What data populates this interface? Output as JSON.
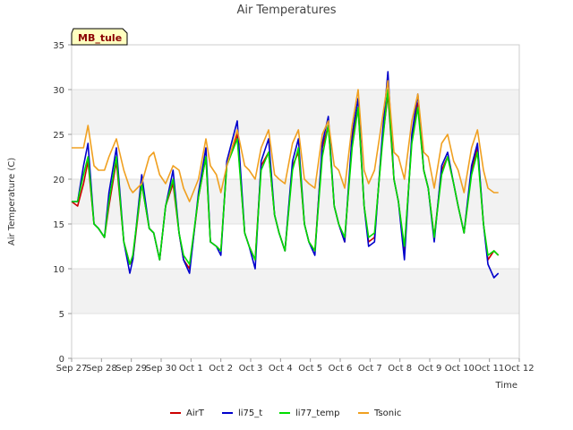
{
  "chart_data": {
    "type": "line",
    "title": "Air Temperatures",
    "xlabel": "Time",
    "ylabel": "Air Temperature (C)",
    "badge": "MB_tule",
    "ylim": [
      0,
      35
    ],
    "yticks": [
      0,
      5,
      10,
      15,
      20,
      25,
      30,
      35
    ],
    "xlim": [
      "Sep 27",
      "Oct 12"
    ],
    "xtick_labels": [
      "Sep 27",
      "Sep 28",
      "Sep 29",
      "Sep 30",
      "Oct 1",
      "Oct 2",
      "Oct 3",
      "Oct 4",
      "Oct 5",
      "Oct 6",
      "Oct 7",
      "Oct 8",
      "Oct 9",
      "Oct 10",
      "Oct 11",
      "Oct 12"
    ],
    "grid": "horizontal alternating bands",
    "legend_position": "bottom",
    "series": [
      {
        "name": "AirT",
        "color": "#cc0000",
        "x": [
          0.0,
          0.2,
          0.4,
          0.55,
          0.75,
          0.9,
          1.1,
          1.25,
          1.5,
          1.75,
          1.95,
          2.05,
          2.35,
          2.6,
          2.75,
          2.95,
          3.15,
          3.4,
          3.6,
          3.75,
          3.95,
          4.25,
          4.5,
          4.65,
          4.85,
          5.0,
          5.2,
          5.55,
          5.8,
          5.95,
          6.15,
          6.35,
          6.6,
          6.8,
          6.95,
          7.15,
          7.4,
          7.6,
          7.8,
          7.95,
          8.15,
          8.4,
          8.6,
          8.8,
          8.95,
          9.15,
          9.4,
          9.6,
          9.8,
          9.95,
          10.15,
          10.4,
          10.6,
          10.8,
          10.95,
          11.15,
          11.4,
          11.6,
          11.8,
          11.95,
          12.15,
          12.4,
          12.6,
          12.8,
          12.95,
          13.15,
          13.4,
          13.6,
          13.8,
          13.95,
          14.15,
          14.3
        ],
        "y": [
          17.5,
          17.0,
          19.5,
          22.0,
          15.0,
          14.5,
          13.5,
          17.0,
          22.0,
          13.0,
          10.5,
          11.0,
          19.5,
          14.5,
          14.0,
          11.0,
          17.0,
          19.5,
          14.0,
          11.0,
          10.0,
          18.0,
          22.5,
          13.0,
          12.5,
          12.0,
          21.5,
          25.0,
          14.0,
          12.5,
          11.0,
          21.5,
          23.0,
          16.0,
          14.0,
          12.0,
          21.5,
          23.0,
          15.0,
          13.0,
          12.0,
          23.5,
          26.0,
          17.0,
          15.0,
          13.0,
          24.5,
          28.0,
          17.0,
          13.0,
          13.5,
          24.0,
          29.5,
          20.0,
          17.5,
          12.0,
          24.5,
          28.5,
          21.0,
          19.0,
          13.5,
          21.0,
          22.5,
          19.5,
          17.0,
          14.0,
          21.0,
          23.5,
          15.0,
          11.0,
          12.0,
          11.5
        ]
      },
      {
        "name": "li75_t",
        "color": "#0000cc",
        "x": [
          0.0,
          0.2,
          0.4,
          0.55,
          0.75,
          0.9,
          1.1,
          1.25,
          1.5,
          1.75,
          1.95,
          2.05,
          2.35,
          2.6,
          2.75,
          2.95,
          3.15,
          3.4,
          3.6,
          3.75,
          3.95,
          4.25,
          4.5,
          4.65,
          4.85,
          5.0,
          5.2,
          5.55,
          5.8,
          5.95,
          6.15,
          6.35,
          6.6,
          6.8,
          6.95,
          7.15,
          7.4,
          7.6,
          7.8,
          7.95,
          8.15,
          8.4,
          8.6,
          8.8,
          8.95,
          9.15,
          9.4,
          9.6,
          9.8,
          9.95,
          10.15,
          10.4,
          10.6,
          10.8,
          10.95,
          11.15,
          11.4,
          11.6,
          11.8,
          11.95,
          12.15,
          12.4,
          12.6,
          12.8,
          12.95,
          13.15,
          13.4,
          13.6,
          13.8,
          13.95,
          14.15,
          14.3
        ],
        "y": [
          17.5,
          17.5,
          21.5,
          24.0,
          15.0,
          14.5,
          13.5,
          18.5,
          23.5,
          13.0,
          9.5,
          11.0,
          20.5,
          14.5,
          14.0,
          11.0,
          17.0,
          21.0,
          14.0,
          11.0,
          9.5,
          18.5,
          23.5,
          13.0,
          12.5,
          11.5,
          22.0,
          26.5,
          14.0,
          12.5,
          10.0,
          22.0,
          24.5,
          16.0,
          14.0,
          12.0,
          22.0,
          24.5,
          15.0,
          13.0,
          11.5,
          24.0,
          27.0,
          17.0,
          15.0,
          13.0,
          25.0,
          29.0,
          17.0,
          12.5,
          13.0,
          24.5,
          32.0,
          20.0,
          17.5,
          11.0,
          25.0,
          29.5,
          21.0,
          19.0,
          13.0,
          21.5,
          23.0,
          19.5,
          17.0,
          14.0,
          21.5,
          24.0,
          15.0,
          10.5,
          9.0,
          9.5
        ]
      },
      {
        "name": "li77_temp",
        "color": "#00dd00",
        "x": [
          0.0,
          0.2,
          0.4,
          0.55,
          0.75,
          0.9,
          1.1,
          1.25,
          1.5,
          1.75,
          1.95,
          2.05,
          2.35,
          2.6,
          2.75,
          2.95,
          3.15,
          3.4,
          3.6,
          3.75,
          3.95,
          4.25,
          4.5,
          4.65,
          4.85,
          5.0,
          5.2,
          5.55,
          5.8,
          5.95,
          6.15,
          6.35,
          6.6,
          6.8,
          6.95,
          7.15,
          7.4,
          7.6,
          7.8,
          7.95,
          8.15,
          8.4,
          8.6,
          8.8,
          8.95,
          9.15,
          9.4,
          9.6,
          9.8,
          9.95,
          10.15,
          10.4,
          10.6,
          10.8,
          10.95,
          11.15,
          11.4,
          11.6,
          11.8,
          11.95,
          12.15,
          12.4,
          12.6,
          12.8,
          12.95,
          13.15,
          13.4,
          13.6,
          13.8,
          13.95,
          14.15,
          14.3
        ],
        "y": [
          17.5,
          17.5,
          20.5,
          22.5,
          15.0,
          14.5,
          13.5,
          17.5,
          22.5,
          13.0,
          10.5,
          11.5,
          19.5,
          14.5,
          14.0,
          11.0,
          17.0,
          20.0,
          14.0,
          11.5,
          10.5,
          18.0,
          22.5,
          13.0,
          12.5,
          12.0,
          21.5,
          24.5,
          14.0,
          12.5,
          11.0,
          21.0,
          23.0,
          16.0,
          14.0,
          12.0,
          21.0,
          23.5,
          15.0,
          13.0,
          12.0,
          22.5,
          26.0,
          17.0,
          15.0,
          13.5,
          23.5,
          28.0,
          17.0,
          13.5,
          14.0,
          23.5,
          30.0,
          20.0,
          17.5,
          12.5,
          24.0,
          28.0,
          21.0,
          19.0,
          13.5,
          20.5,
          22.5,
          19.5,
          17.0,
          14.0,
          20.5,
          23.0,
          15.0,
          11.5,
          12.0,
          11.5
        ]
      },
      {
        "name": "Tsonic",
        "color": "#f0a020",
        "x": [
          0.0,
          0.2,
          0.4,
          0.55,
          0.75,
          0.9,
          1.1,
          1.25,
          1.5,
          1.75,
          1.95,
          2.05,
          2.35,
          2.6,
          2.75,
          2.95,
          3.15,
          3.4,
          3.6,
          3.75,
          3.95,
          4.25,
          4.5,
          4.65,
          4.85,
          5.0,
          5.2,
          5.55,
          5.8,
          5.95,
          6.15,
          6.35,
          6.6,
          6.8,
          6.95,
          7.15,
          7.4,
          7.6,
          7.8,
          7.95,
          8.15,
          8.4,
          8.6,
          8.8,
          8.95,
          9.15,
          9.4,
          9.6,
          9.8,
          9.95,
          10.15,
          10.4,
          10.6,
          10.8,
          10.95,
          11.15,
          11.4,
          11.6,
          11.8,
          11.95,
          12.15,
          12.4,
          12.6,
          12.8,
          12.95,
          13.15,
          13.4,
          13.6,
          13.8,
          13.95,
          14.15,
          14.3
        ],
        "y": [
          23.5,
          23.5,
          23.5,
          26.0,
          21.5,
          21.0,
          21.0,
          22.5,
          24.5,
          21.0,
          19.0,
          18.5,
          19.5,
          22.5,
          23.0,
          20.5,
          19.5,
          21.5,
          21.0,
          19.0,
          17.5,
          20.0,
          24.5,
          21.5,
          20.5,
          18.5,
          21.5,
          25.5,
          21.5,
          21.0,
          20.0,
          23.5,
          25.5,
          20.5,
          20.0,
          19.5,
          24.0,
          25.5,
          20.0,
          19.5,
          19.0,
          25.0,
          26.5,
          21.5,
          21.0,
          19.0,
          26.0,
          30.0,
          21.0,
          19.5,
          21.0,
          26.5,
          31.0,
          23.0,
          22.5,
          20.0,
          26.5,
          29.5,
          23.0,
          22.5,
          19.0,
          24.0,
          25.0,
          22.0,
          21.0,
          18.5,
          23.5,
          25.5,
          21.0,
          19.0,
          18.5,
          18.5
        ]
      }
    ]
  }
}
